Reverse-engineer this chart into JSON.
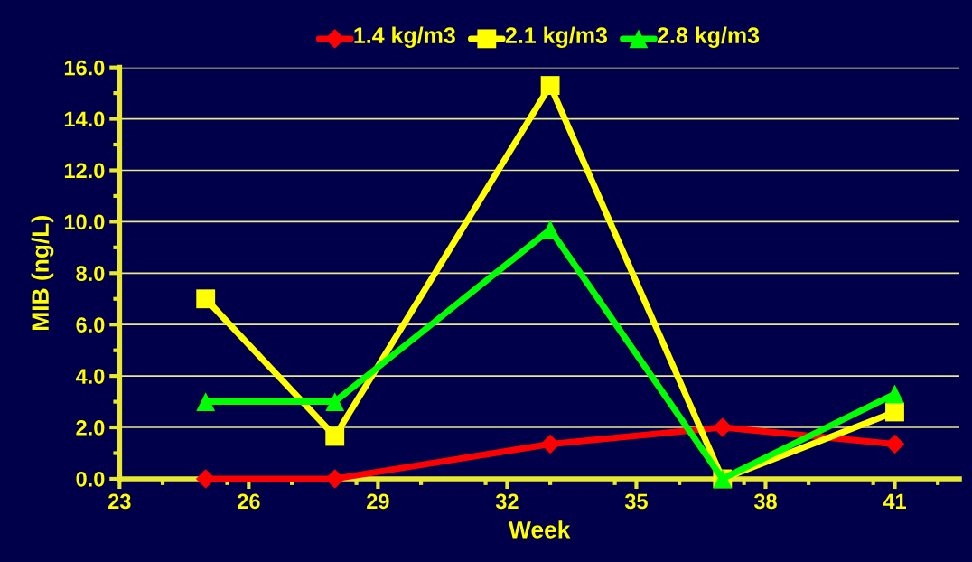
{
  "chart_data": {
    "type": "line",
    "xlabel": "Week",
    "ylabel": "MIB (ng/L)",
    "x": [
      25,
      28,
      33,
      37,
      41
    ],
    "series": [
      {
        "name": "1.4 kg/m3",
        "color": "#ff0000",
        "marker": "diamond",
        "values": [
          0.0,
          0.0,
          1.35,
          2.0,
          1.35
        ]
      },
      {
        "name": "2.1 kg/m3",
        "color": "#ffff00",
        "marker": "square",
        "values": [
          7.0,
          1.65,
          15.3,
          0.0,
          2.6
        ]
      },
      {
        "name": "2.8 kg/m3",
        "color": "#00ff00",
        "marker": "triangle",
        "values": [
          3.0,
          3.0,
          9.7,
          0.0,
          3.3
        ]
      }
    ],
    "xlim": [
      23,
      42.5
    ],
    "xticks": [
      23,
      26,
      29,
      32,
      35,
      38,
      41
    ],
    "ylim": [
      0,
      16
    ],
    "yticks": [
      {
        "value": 0,
        "label": "0.0"
      },
      {
        "value": 2,
        "label": "2.0"
      },
      {
        "value": 4,
        "label": "4.0"
      },
      {
        "value": 6,
        "label": "6.0"
      },
      {
        "value": 8,
        "label": "8.0"
      },
      {
        "value": 10,
        "label": "10.0"
      },
      {
        "value": 12,
        "label": "12.0"
      },
      {
        "value": 14,
        "label": "14.0"
      },
      {
        "value": 16,
        "label": "16.0"
      }
    ],
    "grid": "y",
    "legend": "top",
    "line_style": "solid"
  }
}
